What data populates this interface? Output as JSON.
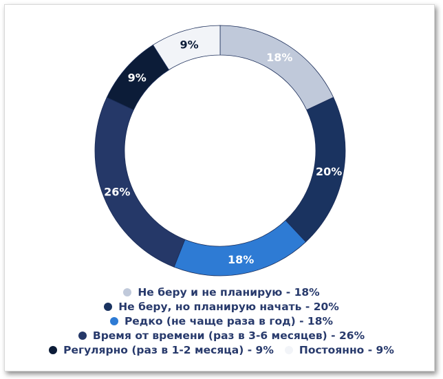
{
  "chart_data": {
    "type": "pie",
    "donut": true,
    "legend_position": "bottom",
    "slices": [
      {
        "label": "Не беру и не планирую - 18%",
        "value": 18,
        "data_label": "18%",
        "color": "#c0c9da",
        "label_color": "#ffffff"
      },
      {
        "label": "Не беру, но планирую начать - 20%",
        "value": 20,
        "data_label": "20%",
        "color": "#1a3360",
        "label_color": "#ffffff"
      },
      {
        "label": "Редко (не чаще раза в год) - 18%",
        "value": 18,
        "data_label": "18%",
        "color": "#2e7bd4",
        "label_color": "#ffffff"
      },
      {
        "label": "Время от времени (раз в 3-6 месяцев) - 26%",
        "value": 26,
        "data_label": "26%",
        "color": "#253868",
        "label_color": "#ffffff"
      },
      {
        "label": "Регулярно (раз в 1-2 месяца) - 9%",
        "value": 9,
        "data_label": "9%",
        "color": "#0c1c38",
        "label_color": "#ffffff"
      },
      {
        "label": "Постоянно - 9%",
        "value": 9,
        "data_label": "9%",
        "color": "#f2f4f8",
        "label_color": "#0c1c38"
      }
    ]
  }
}
